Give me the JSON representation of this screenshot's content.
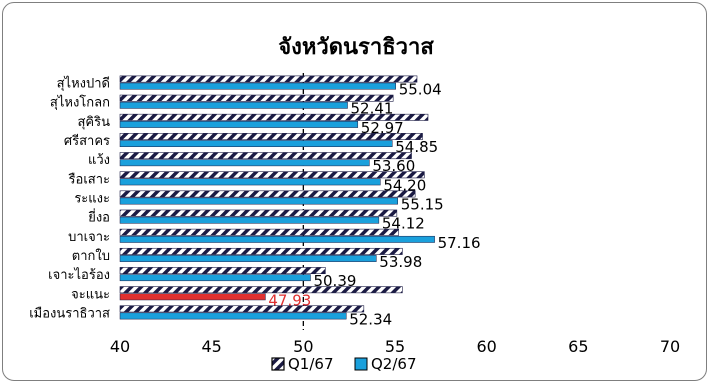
{
  "chart_data": {
    "type": "bar",
    "orientation": "horizontal",
    "title": "จังหวัดนราธิวาส",
    "categories": [
      "สุไหงปาดี",
      "สุไหงโกลก",
      "สุคิริน",
      "ศรีสาคร",
      "แว้ง",
      "รือเสาะ",
      "ระแงะ",
      "ยี่งอ",
      "บาเจาะ",
      "ตากใบ",
      "เจาะไอร้อง",
      "จะแนะ",
      "เมืองนราธิวาส"
    ],
    "series": [
      {
        "name": "Q1/67",
        "pattern": "hatch",
        "values": [
          56.2,
          54.9,
          56.8,
          56.5,
          55.9,
          56.6,
          56.1,
          55.1,
          55.2,
          55.4,
          51.2,
          55.4,
          53.3
        ]
      },
      {
        "name": "Q2/67",
        "color": "#1aa0dc",
        "values": [
          55.04,
          52.41,
          52.97,
          54.85,
          53.6,
          54.2,
          55.15,
          54.12,
          57.16,
          53.98,
          50.39,
          47.93,
          52.34
        ]
      }
    ],
    "highlight": {
      "series": 1,
      "index": 11,
      "color": "#e03030"
    },
    "data_labels": [
      "55.04",
      "52.41",
      "52.97",
      "54.85",
      "53.60",
      "54.20",
      "55.15",
      "54.12",
      "57.16",
      "53.98",
      "50.39",
      "47.93",
      "52.34"
    ],
    "xlim": [
      40,
      70
    ],
    "xticks": [
      "40",
      "45",
      "50",
      "55",
      "60",
      "65",
      "70"
    ],
    "reference_line": 50,
    "legend": [
      "Q1/67",
      "Q2/67"
    ],
    "legend_position": "bottom"
  }
}
